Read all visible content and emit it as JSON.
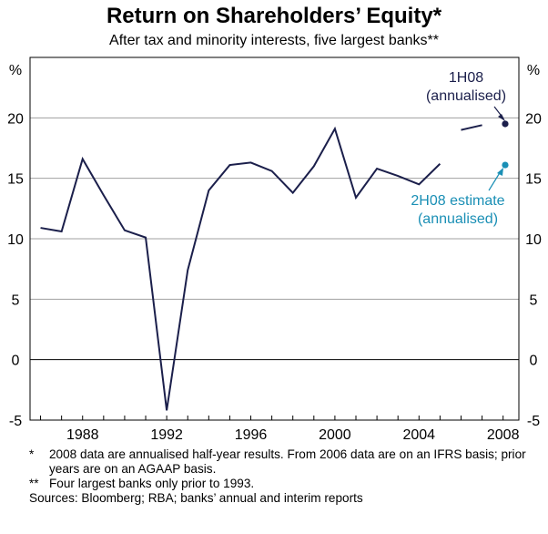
{
  "colors": {
    "line": "#1b1f4b",
    "estimate": "#1a8fb5",
    "grid": "#a0a0a0",
    "axis": "#000000"
  },
  "chart_data": {
    "type": "line",
    "title": "Return on Shareholders’ Equity*",
    "subtitle": "After tax and minority interests, five largest banks**",
    "unit_left": "%",
    "unit_right": "%",
    "ylim": [
      -5,
      25
    ],
    "yticks": [
      -5,
      0,
      5,
      10,
      15,
      20
    ],
    "xlim": [
      1985.5,
      2008.75
    ],
    "xticks": [
      1988,
      1992,
      1996,
      2000,
      2004,
      2008
    ],
    "series": [
      {
        "name": "Return on equity",
        "x": [
          1986,
          1987,
          1988,
          1989,
          1990,
          1991,
          1992,
          1993,
          1994,
          1995,
          1996,
          1997,
          1998,
          1999,
          2000,
          2001,
          2002,
          2003,
          2004,
          2005
        ],
        "y": [
          10.9,
          10.6,
          16.6,
          13.6,
          10.7,
          10.1,
          -4.2,
          7.4,
          14.0,
          16.1,
          16.3,
          15.6,
          13.8,
          16.0,
          19.1,
          13.4,
          15.8,
          15.2,
          14.5,
          16.2
        ]
      },
      {
        "name": "Return on equity (IFRS basis)",
        "x": [
          2006,
          2007
        ],
        "y": [
          19.0,
          19.4
        ]
      }
    ],
    "points": [
      {
        "name": "1H08",
        "x": 2008.1,
        "y": 19.5,
        "color": "estimate_dark"
      },
      {
        "name": "2H08 estimate",
        "x": 2008.1,
        "y": 16.1,
        "color": "estimate"
      }
    ],
    "annotations": {
      "h1_label": "1H08",
      "h1_sub": "(annualised)",
      "h2_label": "2H08 estimate",
      "h2_sub": "(annualised)"
    }
  },
  "notes": [
    {
      "mark": "*",
      "text": "2008 data are annualised half-year results. From 2006 data are on an IFRS basis; prior years are on an AGAAP basis."
    },
    {
      "mark": "**",
      "text": "Four largest banks only prior to 1993."
    },
    {
      "mark": "",
      "text": "Sources: Bloomberg; RBA; banks’ annual and interim reports"
    }
  ]
}
